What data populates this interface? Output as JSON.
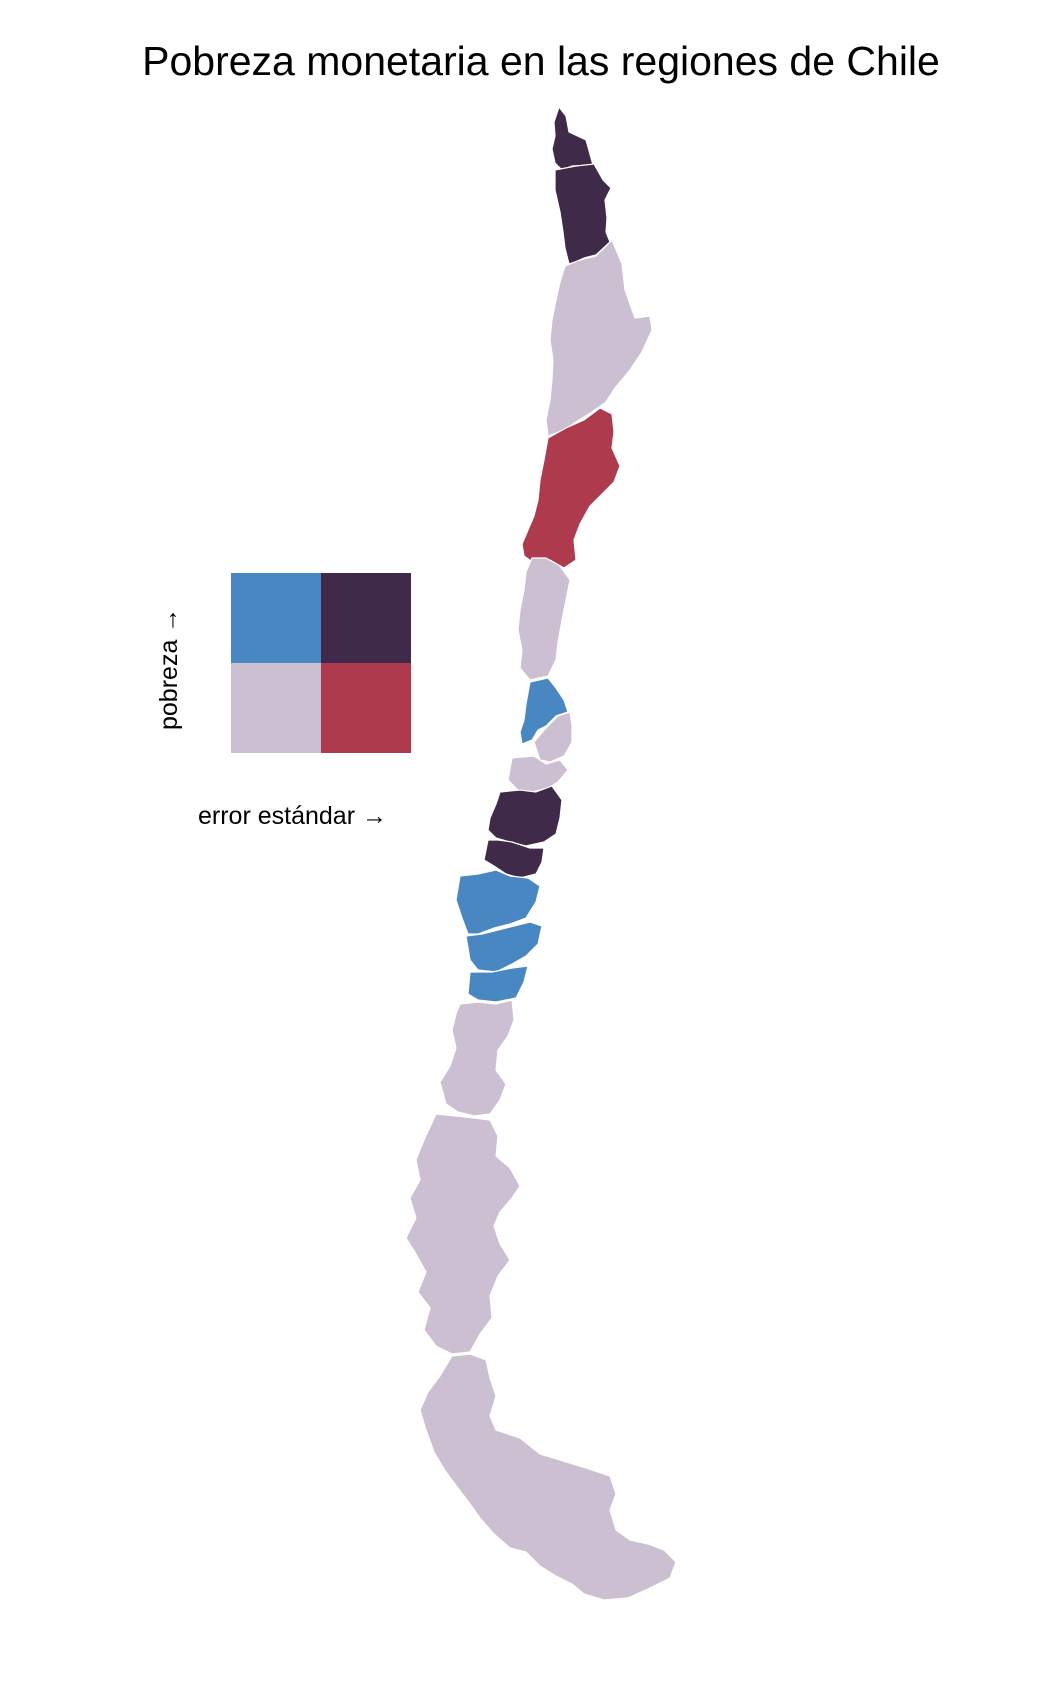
{
  "title": "Pobreza monetaria en las regiones de Chile",
  "legend": {
    "x_label": "error estándar →",
    "y_label": "pobreza →",
    "colors": {
      "high_poverty_low_se": "#4887C2",
      "high_poverty_high_se": "#3F2A49",
      "low_poverty_low_se": "#CBBFD1",
      "low_poverty_high_se": "#AD3A4D"
    }
  },
  "regions": [
    {
      "name": "Arica y Parinacota",
      "class": "high_poverty_high_se"
    },
    {
      "name": "Tarapacá",
      "class": "high_poverty_high_se"
    },
    {
      "name": "Antofagasta",
      "class": "low_poverty_low_se"
    },
    {
      "name": "Atacama",
      "class": "low_poverty_high_se"
    },
    {
      "name": "Coquimbo",
      "class": "low_poverty_low_se"
    },
    {
      "name": "Valparaíso",
      "class": "high_poverty_low_se"
    },
    {
      "name": "Metropolitana",
      "class": "low_poverty_low_se"
    },
    {
      "name": "O'Higgins",
      "class": "low_poverty_low_se"
    },
    {
      "name": "Maule",
      "class": "high_poverty_high_se"
    },
    {
      "name": "Ñuble",
      "class": "high_poverty_high_se"
    },
    {
      "name": "Biobío",
      "class": "high_poverty_low_se"
    },
    {
      "name": "Araucanía",
      "class": "high_poverty_low_se"
    },
    {
      "name": "Los Ríos",
      "class": "high_poverty_low_se"
    },
    {
      "name": "Los Lagos",
      "class": "low_poverty_low_se"
    },
    {
      "name": "Aysén",
      "class": "low_poverty_low_se"
    },
    {
      "name": "Magallanes",
      "class": "low_poverty_low_se"
    }
  ]
}
